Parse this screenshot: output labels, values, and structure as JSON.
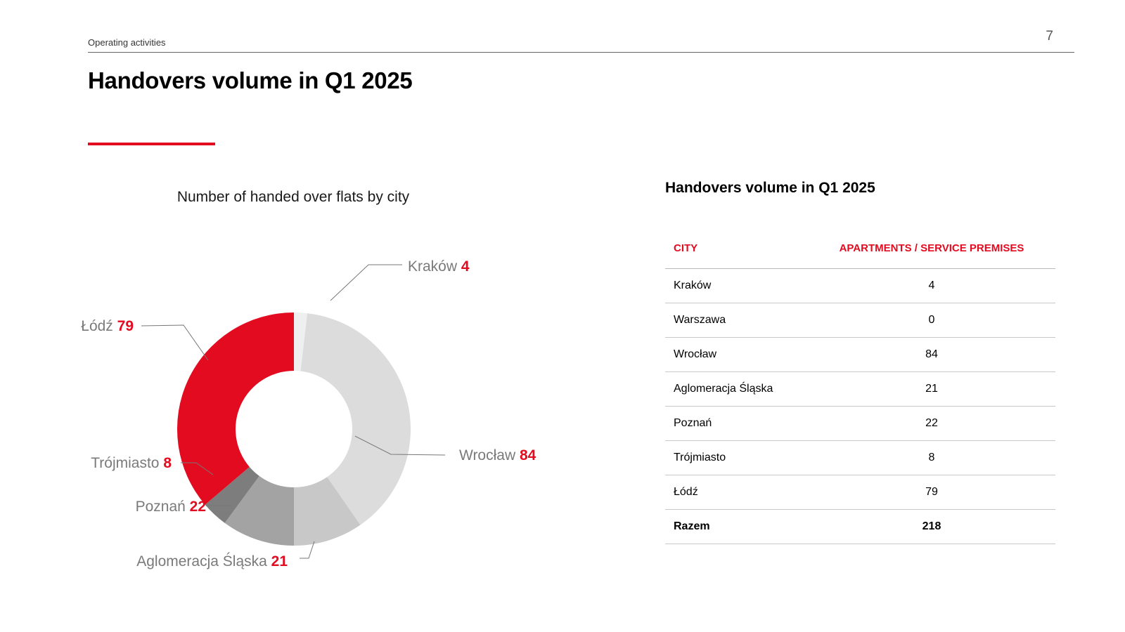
{
  "header": {
    "section": "Operating activities",
    "page_number": "7",
    "title": "Handovers volume in Q1 2025"
  },
  "colors": {
    "accent": "#e30b20",
    "slices": [
      "#efefef",
      "#dcdcdc",
      "#c8c8c8",
      "#a3a3a3",
      "#7d7d7d",
      "#595959",
      "#e30b20"
    ]
  },
  "chart_data": {
    "type": "pie",
    "variant": "donut",
    "title": "Number of handed over flats by city",
    "categories": [
      "Kraków",
      "Wrocław",
      "Aglomeracja Śląska",
      "Poznań",
      "Trójmiasto",
      "Łódź"
    ],
    "values": [
      4,
      84,
      21,
      22,
      8,
      79
    ],
    "start": "12 o'clock",
    "direction": "clockwise"
  },
  "table": {
    "title": "Handovers volume in Q1 2025",
    "headers": [
      "CITY",
      "APARTMENTS / SERVICE PREMISES"
    ],
    "rows": [
      {
        "city": "Kraków",
        "value": "4"
      },
      {
        "city": "Warszawa",
        "value": "0"
      },
      {
        "city": "Wrocław",
        "value": "84"
      },
      {
        "city": "Aglomeracja Śląska",
        "value": "21"
      },
      {
        "city": "Poznań",
        "value": "22"
      },
      {
        "city": "Trójmiasto",
        "value": "8"
      },
      {
        "city": "Łódź",
        "value": "79"
      }
    ],
    "total": {
      "label": "Razem",
      "value": "218"
    }
  }
}
